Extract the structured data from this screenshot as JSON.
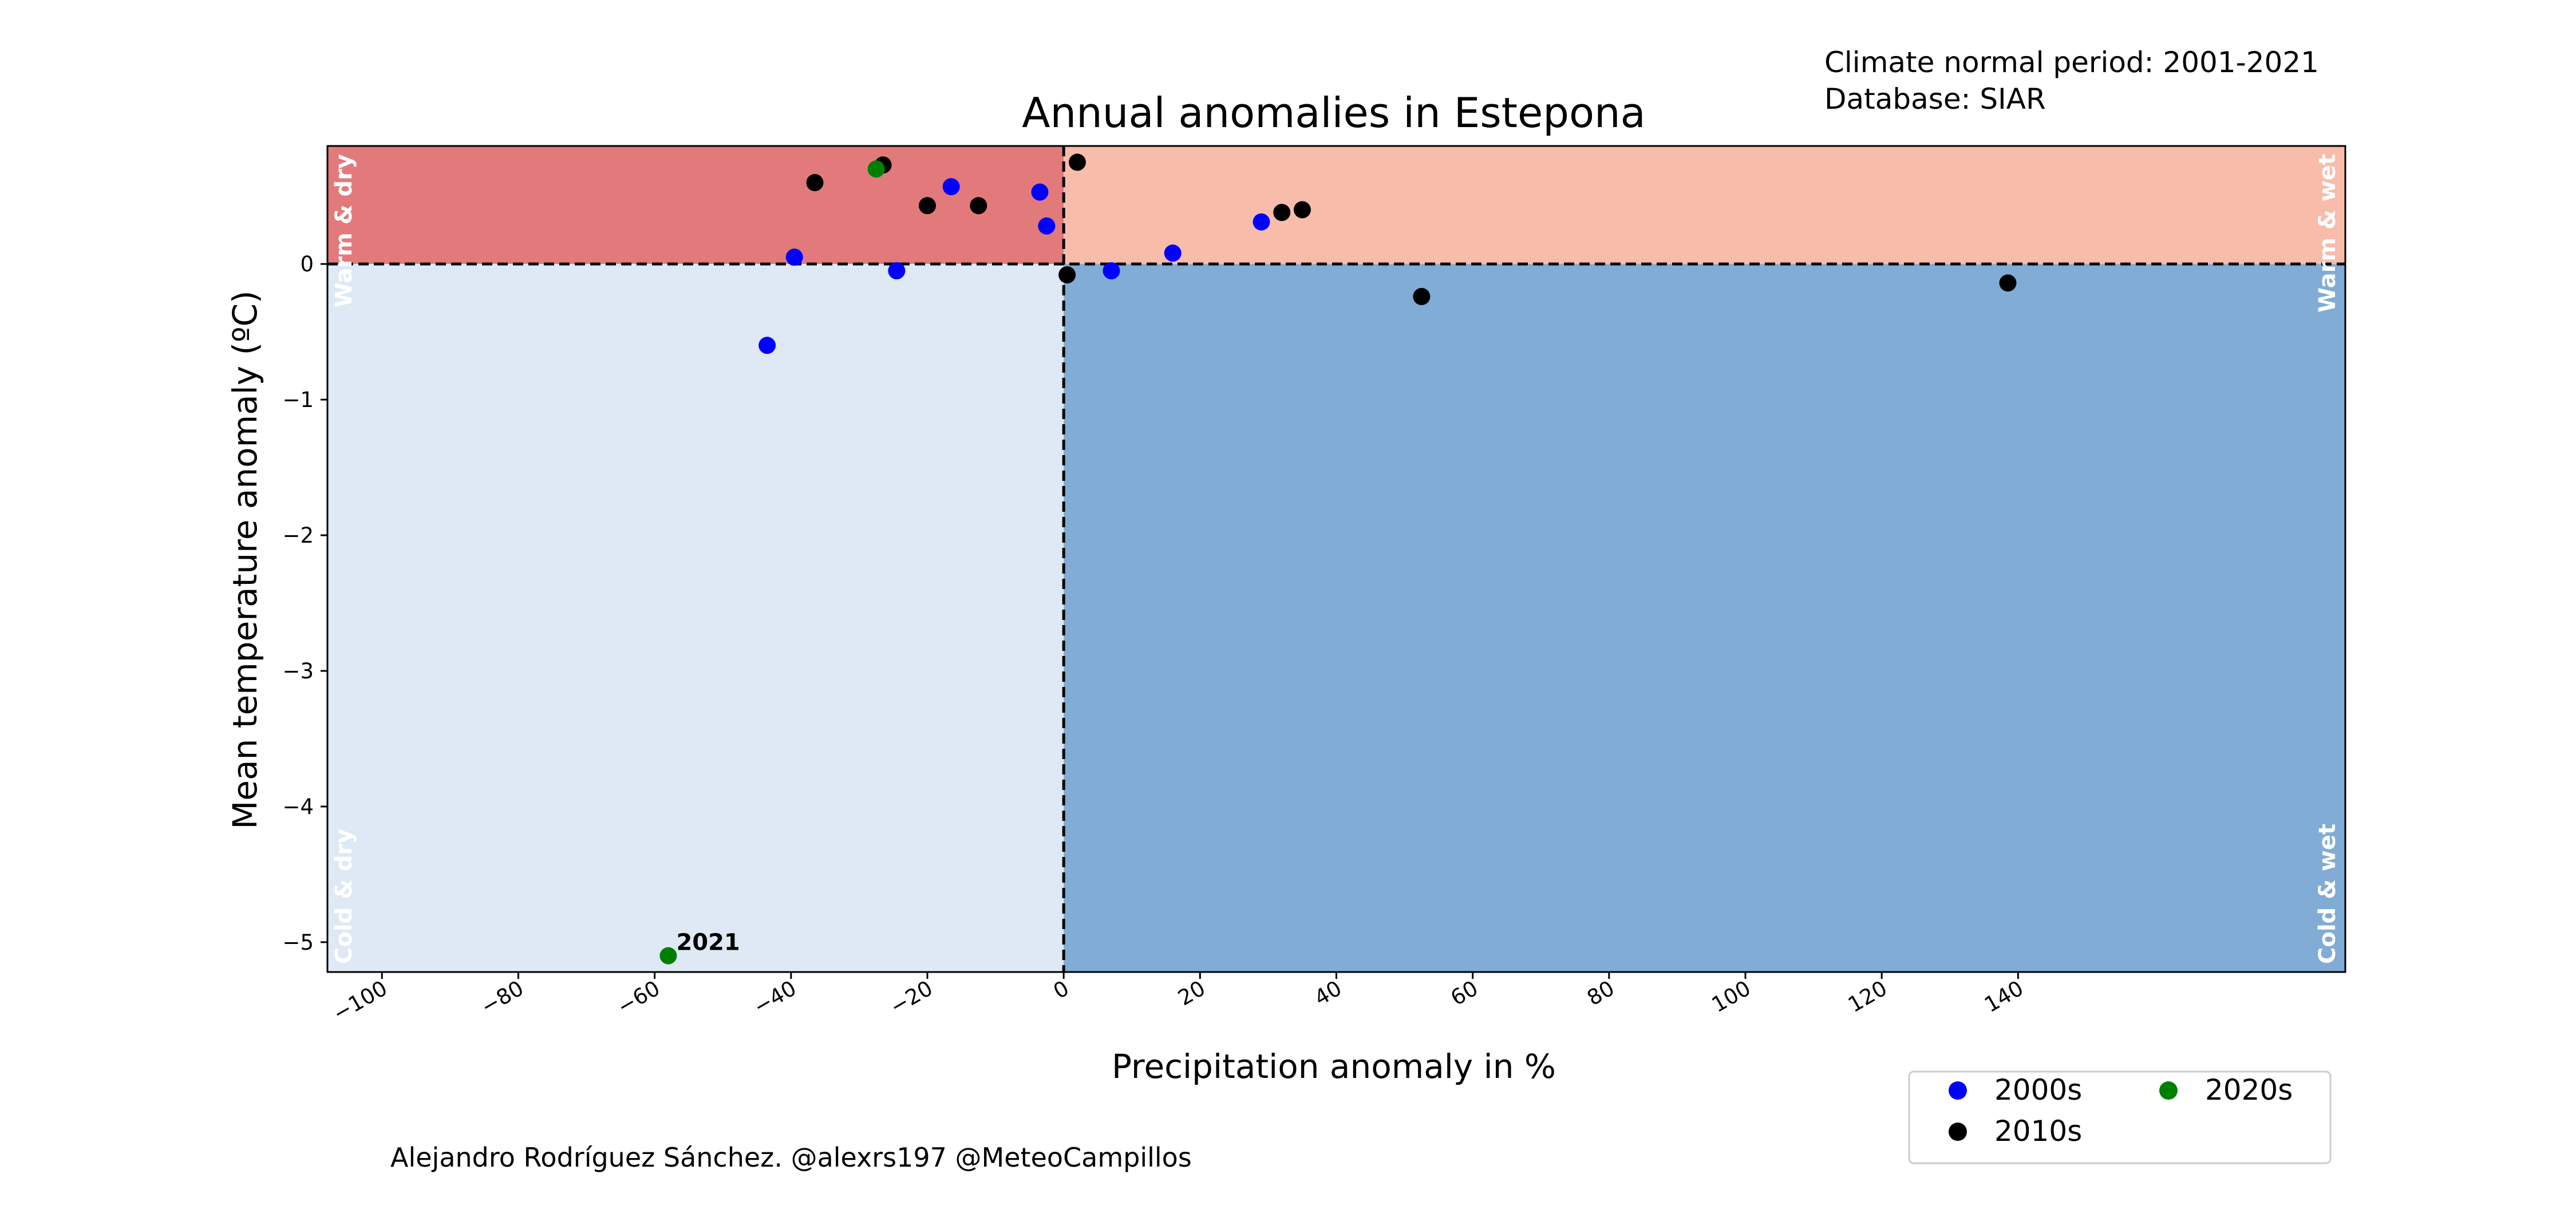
{
  "chart_data": {
    "type": "scatter",
    "title": "Annual anomalies in Estepona",
    "xlabel": "Precipitation anomaly in %",
    "ylabel": "Mean temperature anomaly (ºC)",
    "xlim": [
      -108,
      188
    ],
    "ylim": [
      -5.22,
      0.87
    ],
    "xticks": [
      -100,
      -80,
      -60,
      -40,
      -20,
      0,
      20,
      40,
      60,
      80,
      100,
      120,
      140
    ],
    "yticks": [
      0,
      -1,
      -2,
      -3,
      -4,
      -5
    ],
    "grid": false,
    "info": {
      "normal_period": "Climate normal period: 2001-2021",
      "database": "Database: SIAR"
    },
    "credit": "Alejandro Rodríguez Sánchez. @alexrs197 @MeteoCampillos",
    "quadrants": {
      "warm_dry": {
        "label": "Warm & dry",
        "color": "#e27a7c"
      },
      "warm_wet": {
        "label": "Warm & wet",
        "color": "#f8bcab"
      },
      "cold_dry": {
        "label": "Cold & dry",
        "color": "#dfe9f5"
      },
      "cold_wet": {
        "label": "Cold & wet",
        "color": "#80acd5"
      }
    },
    "legend": {
      "placement": "lower-right",
      "entries": [
        {
          "name": "2000s",
          "color": "#0000ff"
        },
        {
          "name": "2010s",
          "color": "#000000"
        },
        {
          "name": "2020s",
          "color": "#008000"
        }
      ]
    },
    "series": [
      {
        "name": "2000s",
        "color": "#0000ff",
        "points": [
          {
            "x": -43.5,
            "y": -0.6
          },
          {
            "x": -39.5,
            "y": 0.05
          },
          {
            "x": -24.5,
            "y": -0.05
          },
          {
            "x": -16.5,
            "y": 0.57
          },
          {
            "x": -3.5,
            "y": 0.53
          },
          {
            "x": -2.5,
            "y": 0.28
          },
          {
            "x": 7,
            "y": -0.05
          },
          {
            "x": 16,
            "y": 0.08
          },
          {
            "x": 29,
            "y": 0.31
          }
        ]
      },
      {
        "name": "2010s",
        "color": "#000000",
        "points": [
          {
            "x": -36.5,
            "y": 0.6
          },
          {
            "x": -26.5,
            "y": 0.73
          },
          {
            "x": -20,
            "y": 0.43
          },
          {
            "x": -12.5,
            "y": 0.43
          },
          {
            "x": 0.5,
            "y": -0.08
          },
          {
            "x": 2,
            "y": 0.75
          },
          {
            "x": 32,
            "y": 0.38
          },
          {
            "x": 35,
            "y": 0.4
          },
          {
            "x": 52.5,
            "y": -0.24
          },
          {
            "x": 138.5,
            "y": -0.14
          }
        ]
      },
      {
        "name": "2020s",
        "color": "#008000",
        "points": [
          {
            "x": -27.5,
            "y": 0.7
          },
          {
            "x": -58,
            "y": -5.1,
            "label": "2021"
          }
        ]
      }
    ]
  }
}
